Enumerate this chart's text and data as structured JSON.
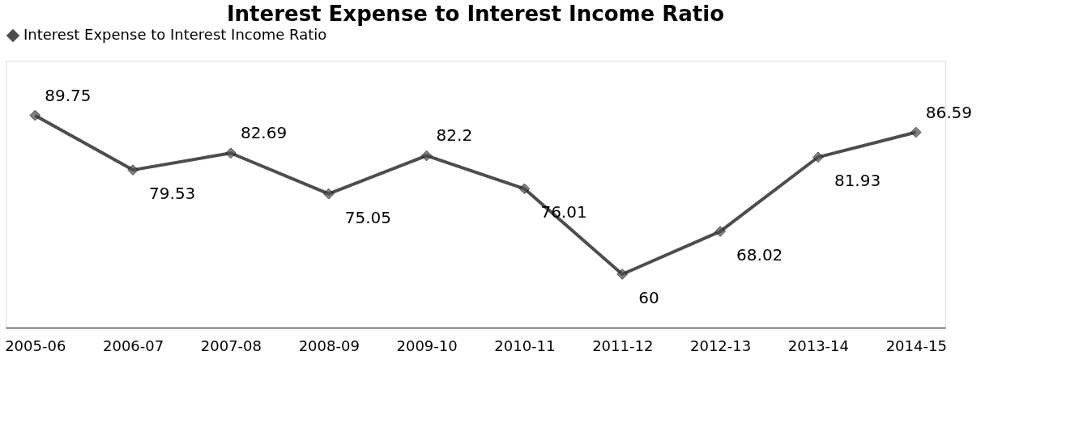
{
  "chart_data": {
    "type": "line",
    "title": "Interest Expense to Interest Income Ratio",
    "categories": [
      "2005-06",
      "2006-07",
      "2007-08",
      "2008-09",
      "2009-10",
      "2010-11",
      "2011-12",
      "2012-13",
      "2013-14",
      "2014-15"
    ],
    "series": [
      {
        "name": "Interest Expense to Interest Income Ratio",
        "color": "#4d4d4d",
        "values": [
          89.75,
          79.53,
          82.69,
          75.05,
          82.2,
          76.01,
          60,
          68.02,
          81.93,
          86.59
        ]
      }
    ],
    "data_labels": true,
    "legend": "top",
    "marker": "diamond",
    "line_style": "solid",
    "grid": false
  }
}
